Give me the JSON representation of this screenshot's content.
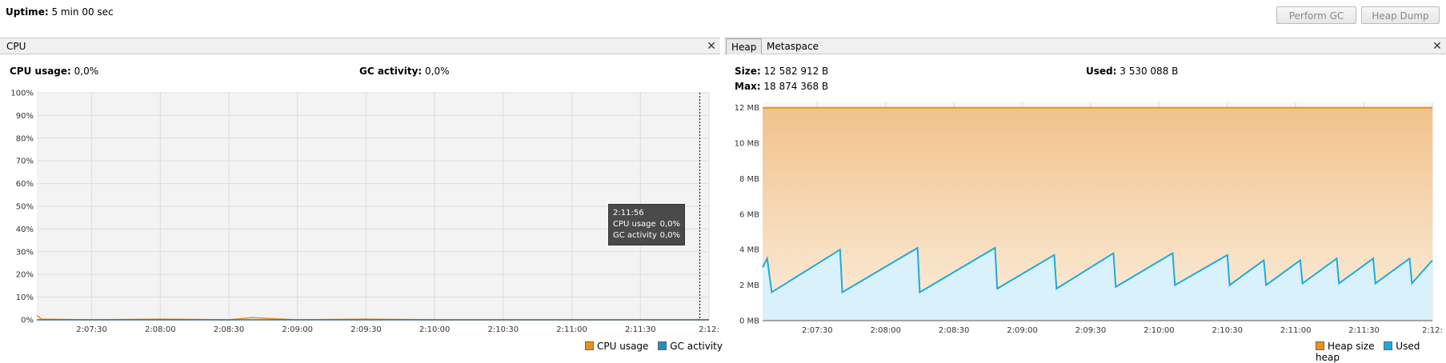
{
  "header": {
    "uptime_label": "Uptime:",
    "uptime_value": "5 min 00 sec",
    "perform_gc_label": "Perform GC",
    "heap_dump_label": "Heap Dump"
  },
  "cpu_panel": {
    "tab_label": "CPU",
    "close_glyph": "✕",
    "cpu_usage_label": "CPU usage:",
    "cpu_usage_value": "0,0%",
    "gc_activity_label": "GC activity:",
    "gc_activity_value": "0,0%",
    "tooltip": {
      "time": "2:11:56",
      "cpu_label": "CPU usage",
      "cpu_value": "0,0%",
      "gc_label": "GC activity",
      "gc_value": "0,0%"
    },
    "legend": [
      "CPU usage",
      "GC activity"
    ]
  },
  "memory_panel": {
    "tabs": [
      "Heap",
      "Metaspace"
    ],
    "active_tab": "Heap",
    "close_glyph": "✕",
    "size_label": "Size:",
    "size_value": "12 582 912 B",
    "used_label": "Used:",
    "used_value": "3 530 088 B",
    "max_label": "Max:",
    "max_value": "18 874 368 B",
    "legend": [
      "Heap size",
      "Used heap"
    ]
  },
  "colors": {
    "cpu": "#e8921e",
    "gc": "#1f8ec0",
    "heap_size": "#e8921e",
    "used_heap": "#22aad6"
  },
  "chart_data": [
    {
      "type": "line",
      "title": "CPU",
      "x_ticks": [
        "2:07:30",
        "2:08:00",
        "2:08:30",
        "2:09:00",
        "2:09:30",
        "2:10:00",
        "2:10:30",
        "2:11:00",
        "2:11:30",
        "2:12:"
      ],
      "y_ticks": [
        "0%",
        "10%",
        "20%",
        "30%",
        "40%",
        "50%",
        "60%",
        "70%",
        "80%",
        "90%",
        "100%"
      ],
      "ylim": [
        0,
        100
      ],
      "grid": true,
      "legend_position": "bottom-right",
      "series": [
        {
          "name": "CPU usage",
          "x": [
            "2:07:06",
            "2:07:08",
            "2:07:30",
            "2:08:00",
            "2:08:30",
            "2:08:40",
            "2:09:00",
            "2:09:30",
            "2:10:00",
            "2:10:30",
            "2:11:00",
            "2:11:30",
            "2:12:00"
          ],
          "values": [
            2,
            0.3,
            0,
            0.3,
            0,
            1,
            0,
            0.3,
            0,
            0,
            0,
            0,
            0
          ]
        },
        {
          "name": "GC activity",
          "x": [
            "2:07:06",
            "2:12:00"
          ],
          "values": [
            0,
            0
          ]
        }
      ]
    },
    {
      "type": "area",
      "title": "Heap",
      "x_ticks": [
        "2:07:30",
        "2:08:00",
        "2:08:30",
        "2:09:00",
        "2:09:30",
        "2:10:00",
        "2:10:30",
        "2:11:00",
        "2:11:30",
        "2:12:"
      ],
      "y_ticks": [
        "0 MB",
        "2 MB",
        "4 MB",
        "6 MB",
        "8 MB",
        "10 MB",
        "12 MB"
      ],
      "ylim": [
        0,
        12.3
      ],
      "grid": true,
      "legend_position": "bottom-right",
      "series": [
        {
          "name": "Heap size",
          "x": [
            "2:07:06",
            "2:12:00"
          ],
          "values": [
            12,
            12
          ]
        },
        {
          "name": "Used heap",
          "x": [
            "2:07:06",
            "2:07:08",
            "2:07:10",
            "2:07:40",
            "2:07:41",
            "2:08:14",
            "2:08:15",
            "2:08:48",
            "2:08:49",
            "2:09:14",
            "2:09:15",
            "2:09:40",
            "2:09:41",
            "2:10:06",
            "2:10:07",
            "2:10:30",
            "2:10:31",
            "2:10:46",
            "2:10:47",
            "2:11:02",
            "2:11:03",
            "2:11:18",
            "2:11:19",
            "2:11:34",
            "2:11:35",
            "2:11:50",
            "2:11:51",
            "2:12:00"
          ],
          "values": [
            3.0,
            3.5,
            1.6,
            4.0,
            1.6,
            4.1,
            1.6,
            4.1,
            1.8,
            3.7,
            1.8,
            3.8,
            1.9,
            3.8,
            2.0,
            3.7,
            2.0,
            3.4,
            2.0,
            3.4,
            2.1,
            3.5,
            2.1,
            3.5,
            2.1,
            3.5,
            2.1,
            3.4
          ]
        }
      ]
    }
  ]
}
